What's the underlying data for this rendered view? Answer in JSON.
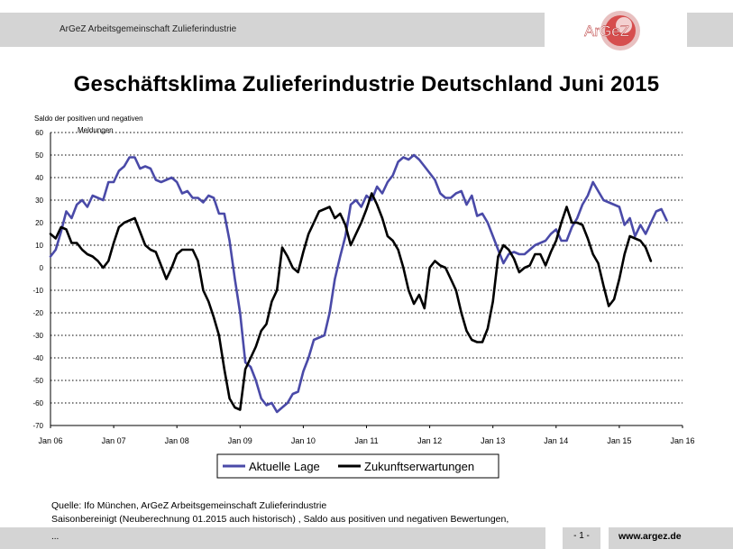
{
  "header": {
    "org_name": "ArGeZ Arbeitsgemeinschaft Zulieferindustrie",
    "logo_text": "ArGeZ"
  },
  "chart_data": {
    "type": "line",
    "title": "Geschäftsklima Zulieferindustrie Deutschland Juni 2015",
    "ylabel_line1": "Saldo der positiven und negativen",
    "ylabel_line2": "Meldungen",
    "ylim": [
      -70,
      60
    ],
    "yticks": [
      60,
      50,
      40,
      30,
      20,
      10,
      0,
      -10,
      -20,
      -30,
      -40,
      -50,
      -60,
      -70
    ],
    "xlim": [
      2006.0,
      2016.0
    ],
    "xtick_labels": [
      "Jan 06",
      "Jan 07",
      "Jan 08",
      "Jan 09",
      "Jan 10",
      "Jan 11",
      "Jan 12",
      "Jan 13",
      "Jan 14",
      "Jan 15",
      "Jan 16"
    ],
    "grid": "horizontal dotted",
    "legend_placement": "bottom-center",
    "start": "Jan 06",
    "series": [
      {
        "name": "Aktuelle Lage",
        "color": "#4a4aa8",
        "values": [
          5,
          8,
          16,
          25,
          22,
          28,
          30,
          27,
          32,
          31,
          30,
          38,
          38,
          43,
          45,
          49,
          49,
          44,
          45,
          44,
          39,
          38,
          39,
          40,
          38,
          33,
          34,
          31,
          31,
          29,
          32,
          31,
          24,
          24,
          12,
          -5,
          -20,
          -42,
          -44,
          -50,
          -58,
          -61,
          -60,
          -64,
          -62,
          -60,
          -56,
          -55,
          -46,
          -40,
          -32,
          -31,
          -30,
          -20,
          -5,
          5,
          14,
          28,
          30,
          27,
          32,
          30,
          36,
          33,
          38,
          41,
          47,
          49,
          48,
          50,
          48,
          45,
          42,
          39,
          33,
          31,
          31,
          33,
          34,
          28,
          32,
          23,
          24,
          20,
          14,
          8,
          2,
          6,
          7,
          6,
          6,
          8,
          10,
          11,
          12,
          15,
          17,
          12,
          12,
          18,
          22,
          28,
          32,
          38,
          34,
          30,
          29,
          28,
          27,
          19,
          22,
          14,
          19,
          15,
          20,
          25,
          26,
          21
        ]
      },
      {
        "name": "Zukunftserwartungen",
        "color": "#000000",
        "values": [
          15,
          13,
          18,
          17,
          11,
          11,
          8,
          6,
          5,
          3,
          0,
          3,
          11,
          18,
          20,
          21,
          22,
          16,
          10,
          8,
          7,
          1,
          -5,
          0,
          6,
          8,
          8,
          8,
          3,
          -10,
          -15,
          -22,
          -30,
          -45,
          -58,
          -62,
          -63,
          -45,
          -40,
          -35,
          -28,
          -25,
          -15,
          -10,
          9,
          5,
          0,
          -2,
          7,
          15,
          20,
          25,
          26,
          27,
          22,
          24,
          19,
          10,
          15,
          20,
          26,
          33,
          28,
          22,
          14,
          12,
          8,
          0,
          -10,
          -16,
          -12,
          -18,
          0,
          3,
          1,
          0,
          -5,
          -10,
          -20,
          -28,
          -32,
          -33,
          -33,
          -27,
          -15,
          5,
          10,
          8,
          4,
          -2,
          0,
          1,
          6,
          6,
          1,
          7,
          12,
          20,
          27,
          20,
          20,
          19,
          13,
          6,
          2,
          -8,
          -17,
          -14,
          -5,
          6,
          14,
          13,
          12,
          9,
          3
        ]
      }
    ]
  },
  "source": {
    "line1": "Quelle: Ifo München, ArGeZ Arbeitsgemeinschaft Zulieferindustrie",
    "line2": "Saisonbereinigt (Neuberechnung 01.2015 auch historisch) , Saldo aus positiven und negativen Bewertungen,"
  },
  "footer": {
    "ellipsis": "...",
    "page": "- 1 -",
    "url": "www.argez.de"
  }
}
